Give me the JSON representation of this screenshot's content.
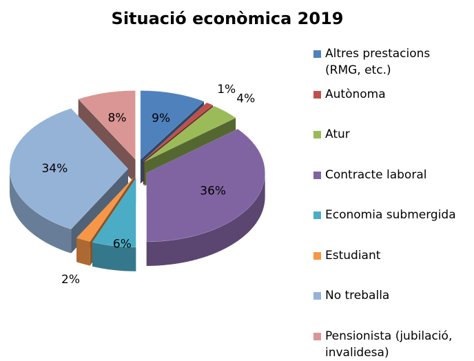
{
  "chart_data": {
    "type": "pie",
    "title": "Situació econòmica 2019",
    "categories": [
      "Altres prestacions (RMG, etc.)",
      "Autònoma",
      "Atur",
      "Contracte laboral",
      "Economia submergida",
      "Estudiant",
      "No treballa",
      "Pensionista (jubilació, invalidesa)"
    ],
    "values": [
      9,
      1,
      4,
      36,
      6,
      2,
      34,
      8
    ],
    "value_labels": [
      "9%",
      "1%",
      "4%",
      "36%",
      "6%",
      "2%",
      "34%",
      "8%"
    ],
    "colors": [
      "#4f81bd",
      "#c0504d",
      "#9bbb59",
      "#8064a2",
      "#4bacc6",
      "#f79646",
      "#95b3d7",
      "#d99694"
    ],
    "legend": "right"
  }
}
